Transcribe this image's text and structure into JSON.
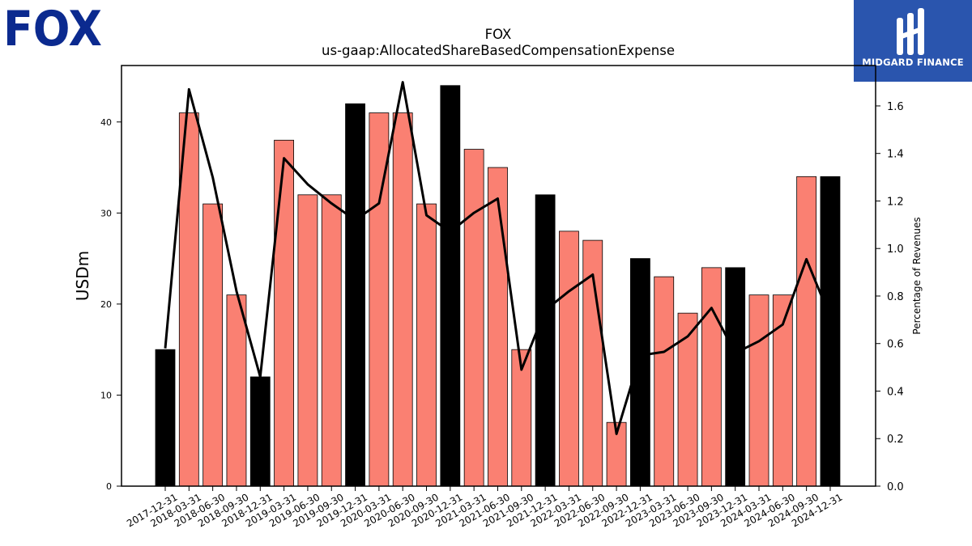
{
  "logos": {
    "left_text": "FOX",
    "right_text": "MIDGARD FINANCE",
    "right_bg": "#2a55ae"
  },
  "colors": {
    "bar_annual": "#000000",
    "bar_quarter": "#fa8072",
    "line": "#000000"
  },
  "chart_data": {
    "type": "bar",
    "title": "FOX",
    "subtitle": "us-gaap:AllocatedShareBasedCompensationExpense",
    "ylabel": "USDm",
    "ylabel_right": "Percentage of Revenues",
    "ylim": [
      0,
      46.2
    ],
    "ylim_right": [
      0,
      1.77
    ],
    "yticks": [
      0,
      10,
      20,
      30,
      40
    ],
    "yticks_right": [
      "0.0",
      "0.2",
      "0.4",
      "0.6",
      "0.8",
      "1.0",
      "1.2",
      "1.4",
      "1.6"
    ],
    "categories": [
      "2017-12-31",
      "2018-03-31",
      "2018-06-30",
      "2018-09-30",
      "2018-12-31",
      "2019-03-31",
      "2019-06-30",
      "2019-09-30",
      "2019-12-31",
      "2020-03-31",
      "2020-06-30",
      "2020-09-30",
      "2020-12-31",
      "2021-03-31",
      "2021-06-30",
      "2021-09-30",
      "2021-12-31",
      "2022-03-31",
      "2022-06-30",
      "2022-09-30",
      "2022-12-31",
      "2023-03-31",
      "2023-06-30",
      "2023-09-30",
      "2023-12-31",
      "2024-03-31",
      "2024-06-30",
      "2024-09-30",
      "2024-12-31"
    ],
    "series": [
      {
        "values": [
          15,
          41,
          31,
          21,
          12,
          38,
          32,
          32,
          42,
          41,
          41,
          31,
          44,
          37,
          35,
          15,
          32,
          28,
          27,
          7,
          25,
          23,
          19,
          24,
          24,
          21,
          21,
          34,
          34
        ],
        "annual": [
          true,
          false,
          false,
          false,
          true,
          false,
          false,
          false,
          true,
          false,
          false,
          false,
          true,
          false,
          false,
          false,
          true,
          false,
          false,
          false,
          true,
          false,
          false,
          false,
          true,
          false,
          false,
          false,
          true
        ]
      },
      {
        "axis": "right",
        "type": "line",
        "values": [
          0.58,
          1.67,
          1.3,
          0.82,
          0.46,
          1.38,
          1.27,
          1.19,
          1.12,
          1.19,
          1.7,
          1.14,
          1.07,
          1.15,
          1.21,
          0.49,
          0.74,
          0.82,
          0.89,
          0.22,
          0.55,
          0.565,
          0.63,
          0.75,
          0.56,
          0.61,
          0.68,
          0.955,
          0.71
        ]
      }
    ]
  }
}
